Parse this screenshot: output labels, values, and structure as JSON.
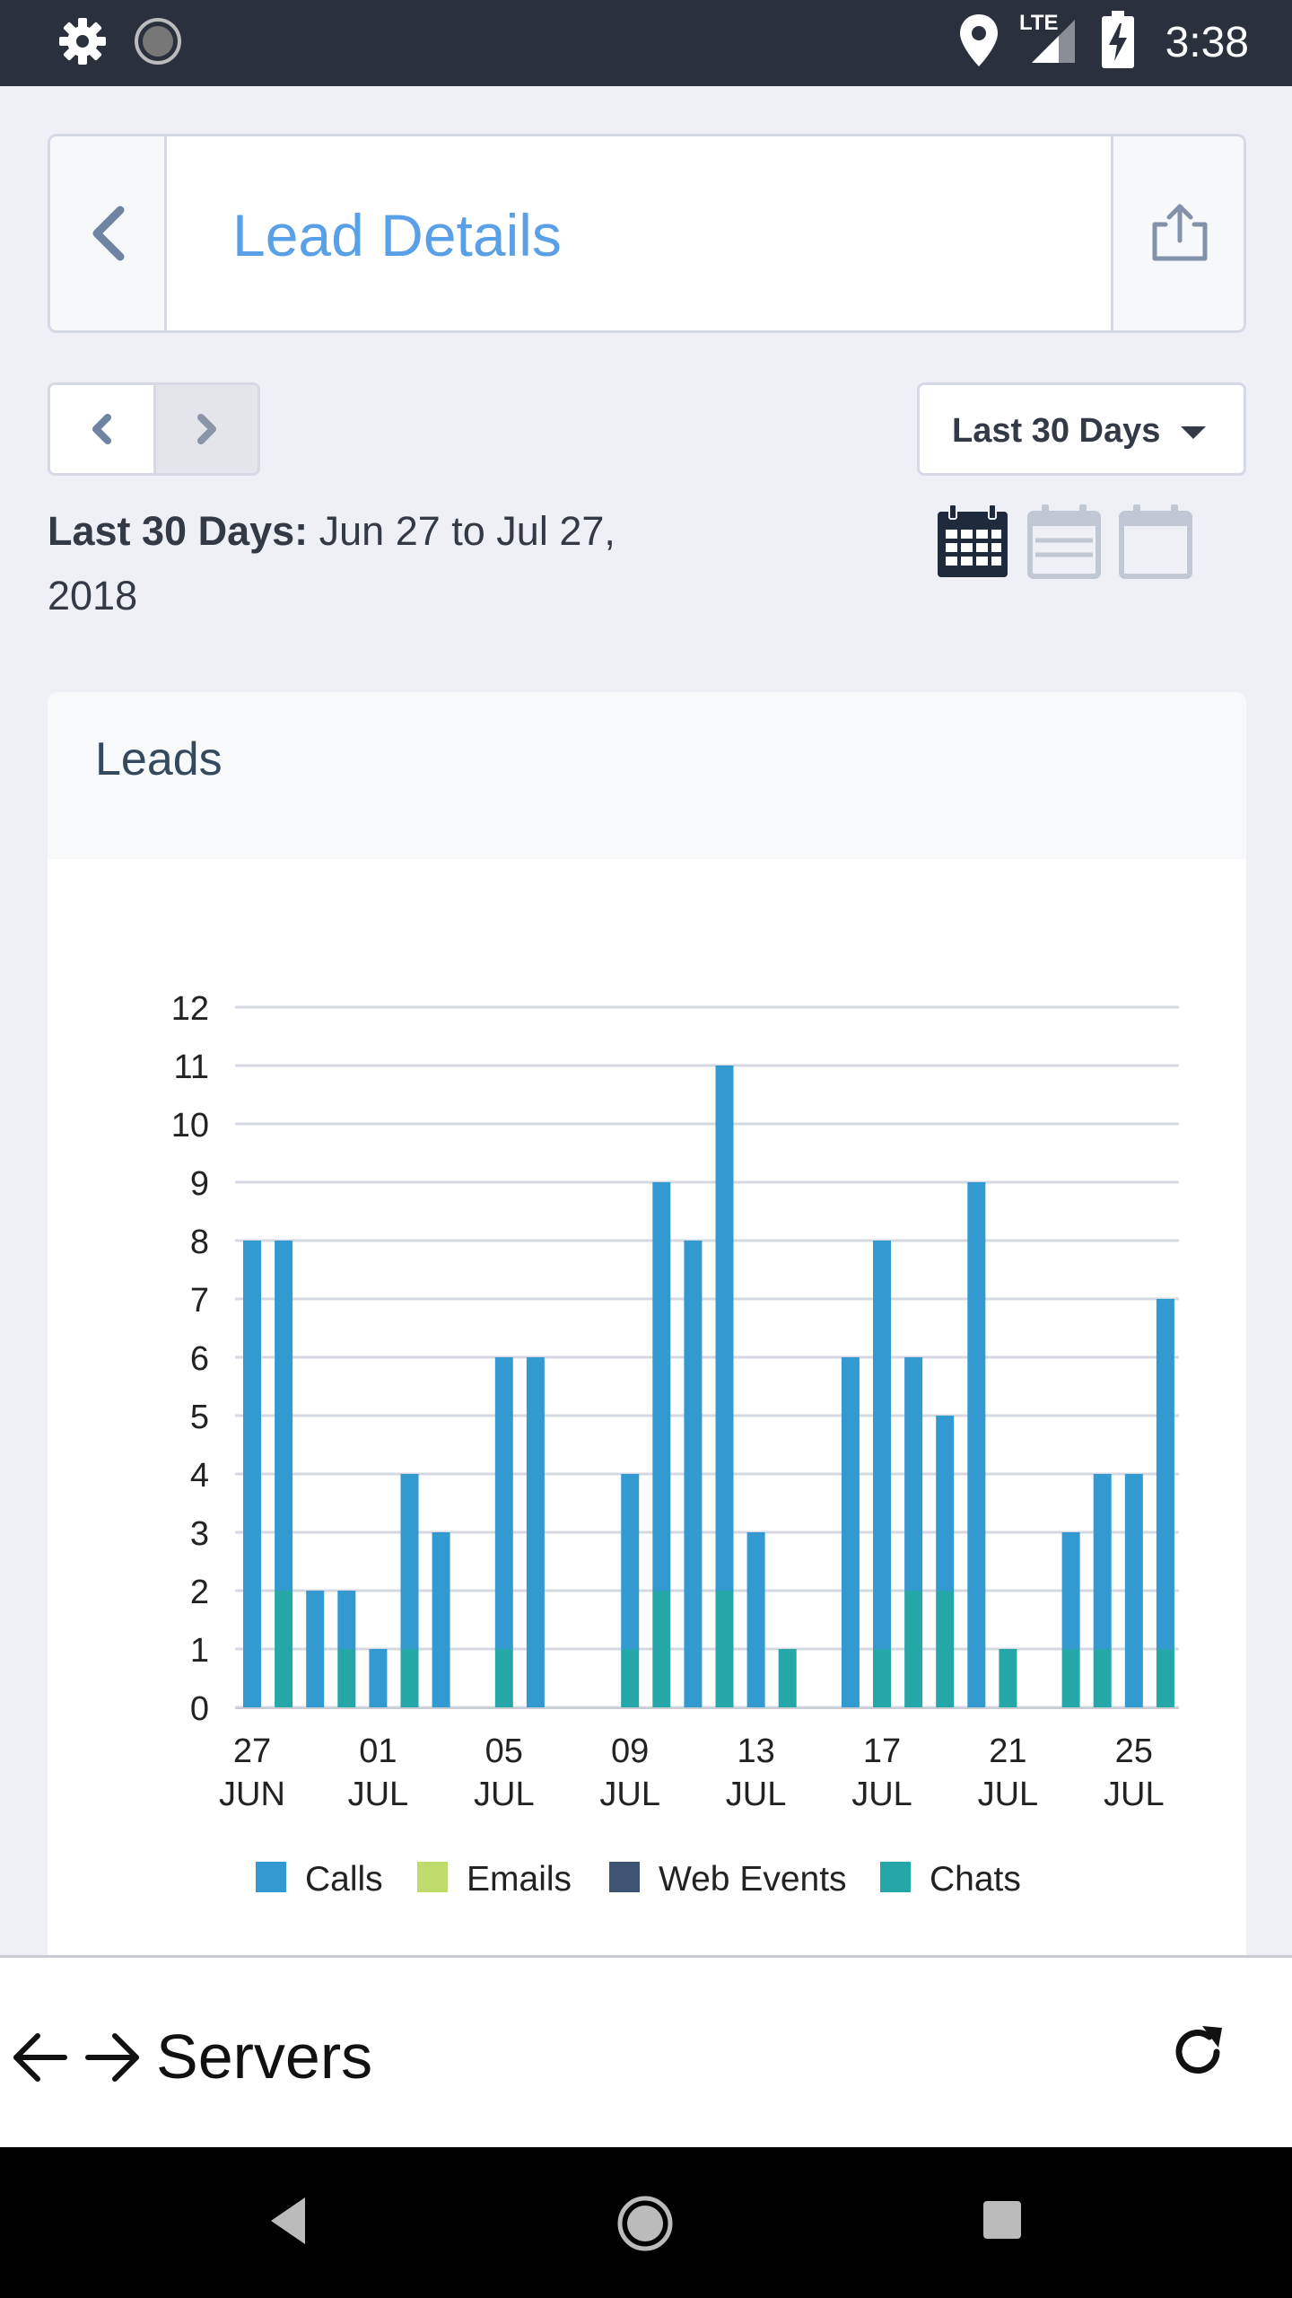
{
  "status_bar": {
    "time": "3:38",
    "network": "LTE",
    "left_icons": [
      "gear-icon",
      "loading-icon"
    ],
    "right_icons": [
      "location-icon",
      "signal-icon",
      "battery-charging-icon"
    ]
  },
  "header": {
    "title": "Lead Details",
    "back_icon": "chevron-left-icon",
    "share_icon": "share-icon"
  },
  "navigation": {
    "prev_icon": "chevron-left-icon",
    "next_icon": "chevron-right-icon"
  },
  "range": {
    "dropdown_value": "Last 30 Days",
    "label": "Last 30 Days:",
    "text": " Jun 27 to Jul 27, 2018"
  },
  "view_icons": [
    "calendar-month-icon",
    "calendar-week-icon",
    "calendar-day-icon"
  ],
  "leads_card": {
    "title": "Leads"
  },
  "colors": {
    "calls": "#3399d1",
    "emails": "#bedb6b",
    "web_events": "#3d5371",
    "chats": "#25a7a7",
    "accent": "#5aa0e6"
  },
  "chart_data": {
    "type": "bar",
    "stacked": true,
    "ylim": [
      0,
      12
    ],
    "yticks": [
      0,
      1,
      2,
      3,
      4,
      5,
      6,
      7,
      8,
      9,
      10,
      11,
      12
    ],
    "grid": true,
    "legend_position": "bottom",
    "x_tick_labels": [
      {
        "day": "27",
        "month": "JUN"
      },
      {
        "day": "01",
        "month": "JUL"
      },
      {
        "day": "05",
        "month": "JUL"
      },
      {
        "day": "09",
        "month": "JUL"
      },
      {
        "day": "13",
        "month": "JUL"
      },
      {
        "day": "17",
        "month": "JUL"
      },
      {
        "day": "21",
        "month": "JUL"
      },
      {
        "day": "25",
        "month": "JUL"
      }
    ],
    "categories": [
      "Jun 27",
      "Jun 28",
      "Jun 29",
      "Jun 30",
      "Jul 01",
      "Jul 02",
      "Jul 03",
      "Jul 04",
      "Jul 05",
      "Jul 06",
      "Jul 07",
      "Jul 08",
      "Jul 09",
      "Jul 10",
      "Jul 11",
      "Jul 12",
      "Jul 13",
      "Jul 14",
      "Jul 15",
      "Jul 16",
      "Jul 17",
      "Jul 18",
      "Jul 19",
      "Jul 20",
      "Jul 21",
      "Jul 22",
      "Jul 23",
      "Jul 24",
      "Jul 25",
      "Jul 26"
    ],
    "series": [
      {
        "name": "Calls",
        "values": [
          8,
          6,
          2,
          1,
          1,
          3,
          3,
          0,
          5,
          6,
          0,
          0,
          3,
          7,
          8,
          9,
          3,
          0,
          0,
          6,
          7,
          4,
          3,
          9,
          0,
          0,
          2,
          3,
          4,
          6
        ]
      },
      {
        "name": "Emails",
        "values": [
          0,
          0,
          0,
          0,
          0,
          0,
          0,
          0,
          0,
          0,
          0,
          0,
          0,
          0,
          0,
          0,
          0,
          0,
          0,
          0,
          0,
          0,
          0,
          0,
          0,
          0,
          0,
          0,
          0,
          0
        ]
      },
      {
        "name": "Web Events",
        "values": [
          0,
          0,
          0,
          0,
          0,
          0,
          0,
          0,
          0,
          0,
          0,
          0,
          0,
          0,
          0,
          0,
          0,
          0,
          0,
          0,
          0,
          0,
          0,
          0,
          0,
          0,
          0,
          0,
          0,
          0
        ]
      },
      {
        "name": "Chats",
        "values": [
          0,
          2,
          0,
          1,
          0,
          1,
          0,
          0,
          1,
          0,
          0,
          0,
          1,
          2,
          0,
          2,
          0,
          1,
          0,
          0,
          1,
          2,
          2,
          0,
          1,
          0,
          1,
          1,
          0,
          1
        ]
      }
    ]
  },
  "browser_bar": {
    "title": "Servers",
    "back_icon": "arrow-left-icon",
    "forward_icon": "arrow-right-icon",
    "reload_icon": "reload-icon"
  },
  "android_nav": {
    "icons": [
      "nav-back-icon",
      "nav-home-icon",
      "nav-recents-icon"
    ]
  }
}
